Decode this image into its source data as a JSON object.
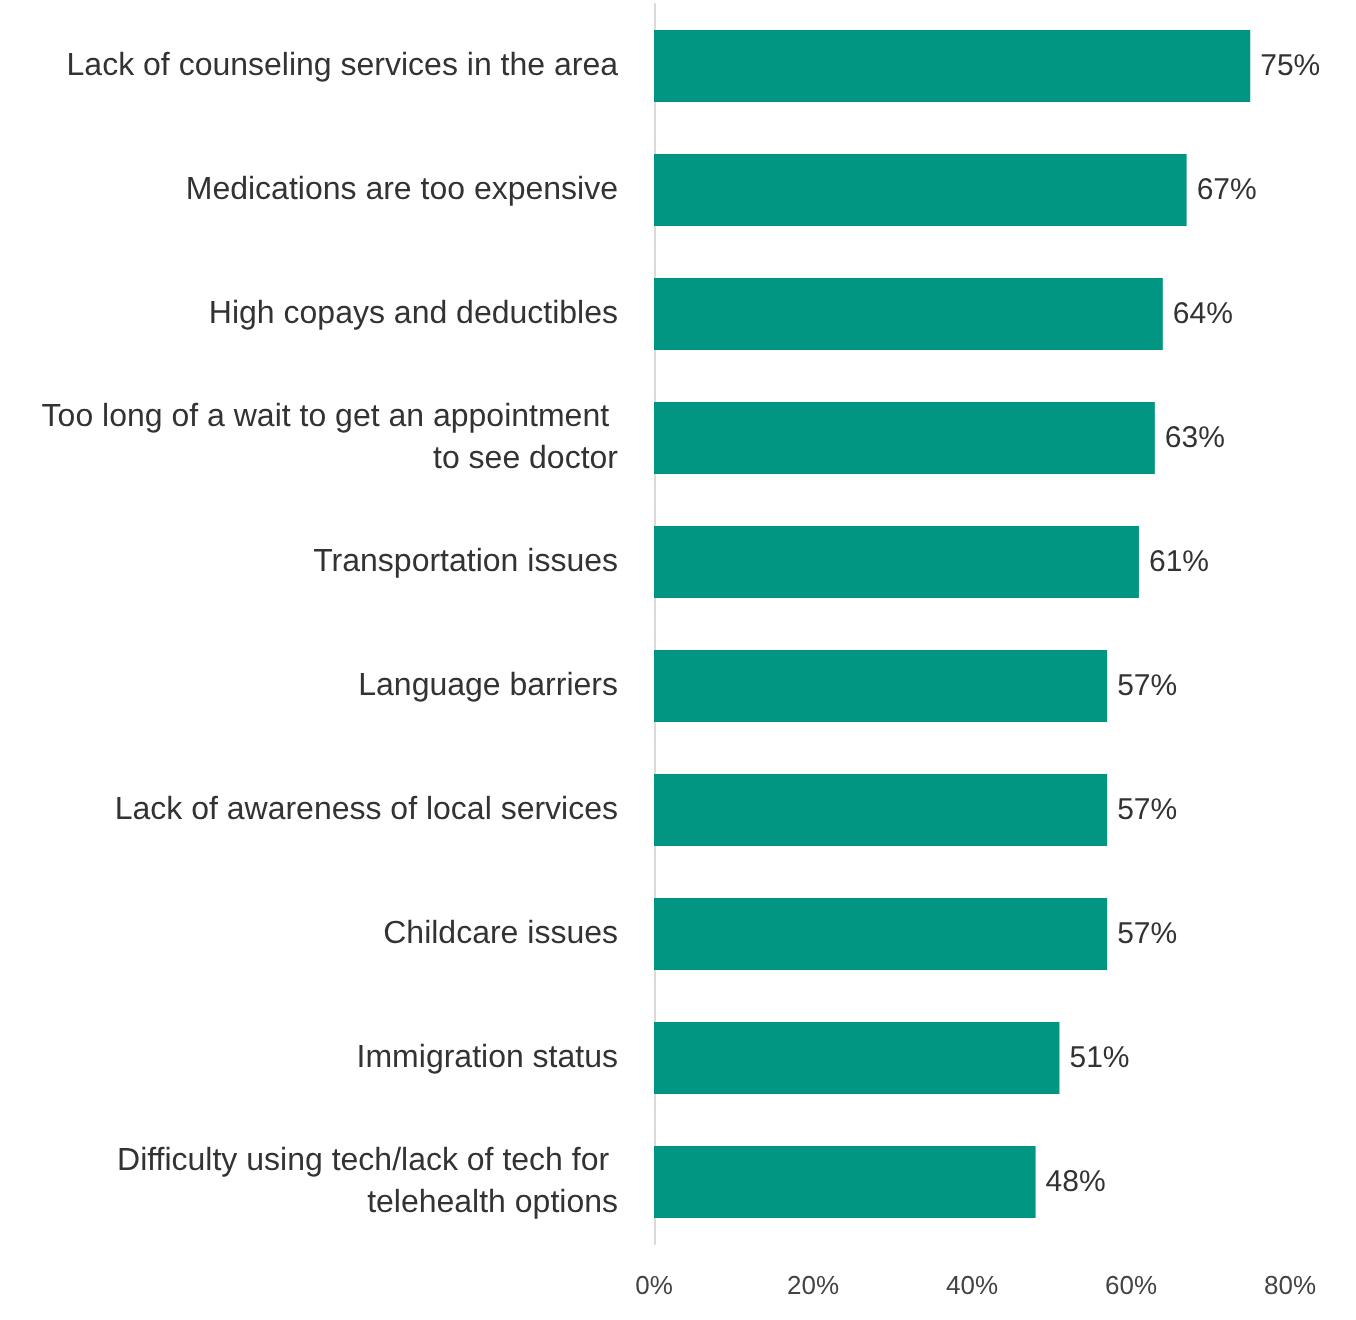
{
  "chart_data": {
    "type": "bar",
    "orientation": "horizontal",
    "categories": [
      "Lack of counseling services in the area",
      "Medications are too expensive",
      "High copays and deductibles",
      "Too long of a wait to get an appointment to see doctor",
      "Transportation issues",
      "Language barriers",
      "Lack of awareness of local services",
      "Childcare issues",
      "Immigration status",
      "Difficulty using tech/lack of tech for telehealth options"
    ],
    "values": [
      75,
      67,
      64,
      63,
      61,
      57,
      57,
      57,
      51,
      48
    ],
    "value_labels": [
      "75%",
      "67%",
      "64%",
      "63%",
      "61%",
      "57%",
      "57%",
      "57%",
      "51%",
      "48%"
    ],
    "color": "#009681",
    "xlim": [
      0,
      80
    ],
    "xticks": [
      {
        "value": 0,
        "label": "0%"
      },
      {
        "value": 20,
        "label": "20%"
      },
      {
        "value": 40,
        "label": "40%"
      },
      {
        "value": 60,
        "label": "60%"
      },
      {
        "value": 80,
        "label": "80%"
      }
    ],
    "grid": false
  }
}
